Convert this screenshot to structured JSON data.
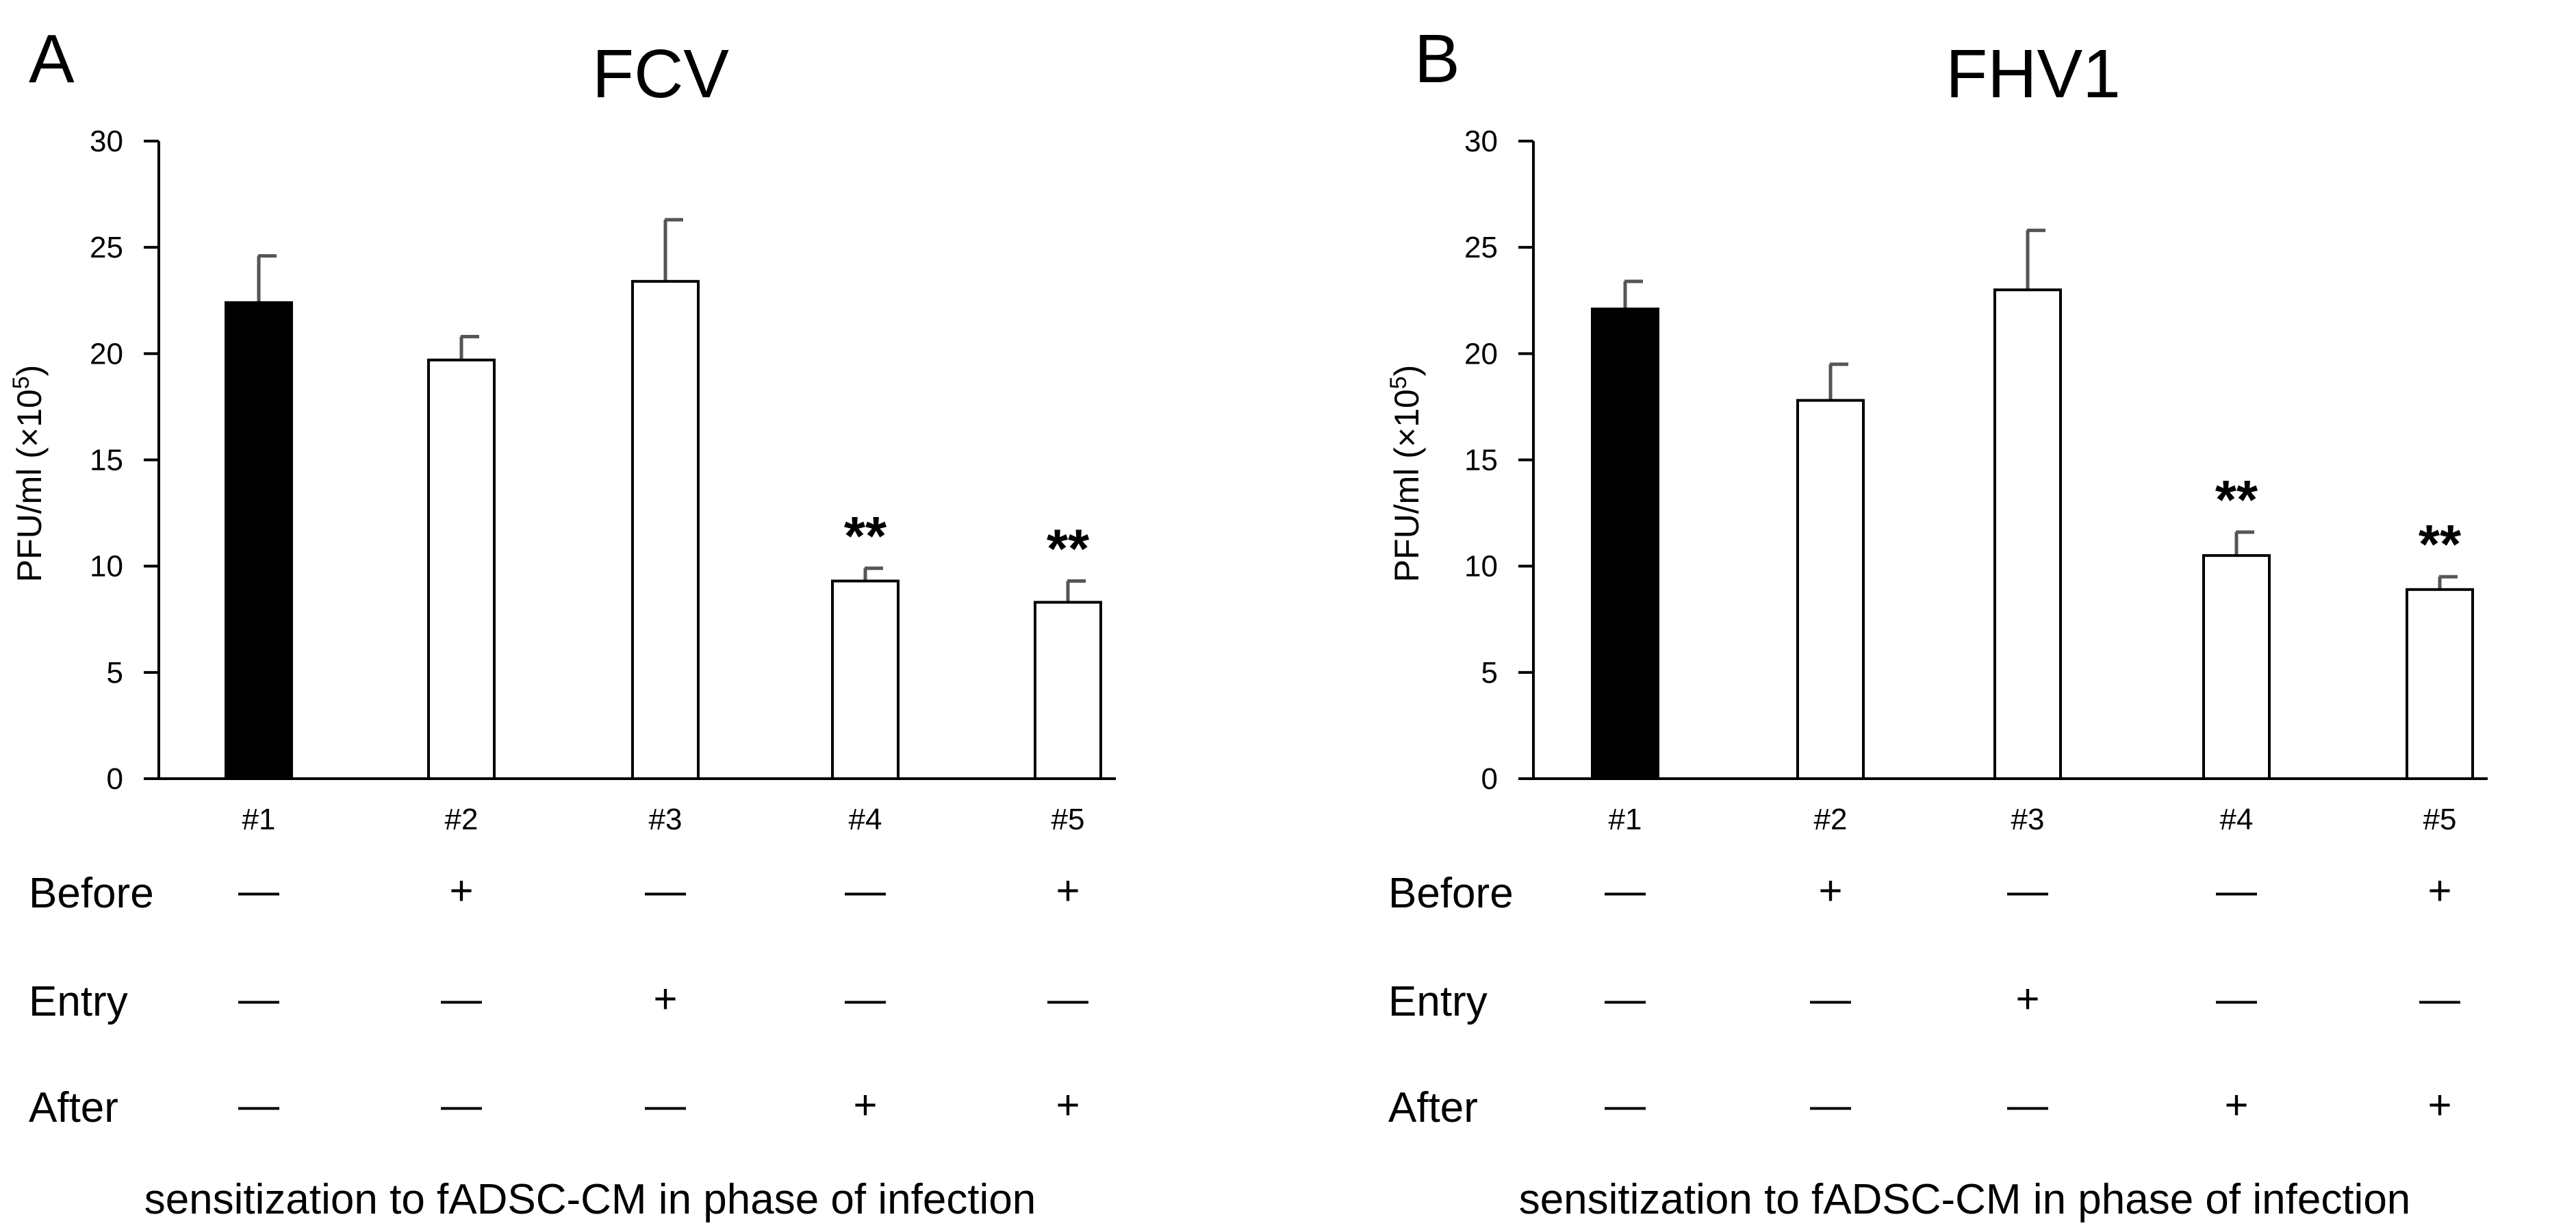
{
  "chart_data": [
    {
      "type": "bar",
      "panel_label": "A",
      "title": "FCV",
      "ylabel_text": "PFU/ml (×10",
      "ylabel_exp": "5",
      "ylabel_close": ")",
      "ylim": [
        0,
        30
      ],
      "yticks": [
        0,
        5,
        10,
        15,
        20,
        25,
        30
      ],
      "categories": [
        "#1",
        "#2",
        "#3",
        "#4",
        "#5"
      ],
      "values": [
        22.4,
        19.7,
        23.4,
        9.3,
        8.3
      ],
      "errors": [
        2.2,
        1.1,
        2.9,
        0.6,
        1.0
      ],
      "fills": [
        "#000000",
        "#ffffff",
        "#ffffff",
        "#ffffff",
        "#ffffff"
      ],
      "significance": [
        "",
        "",
        "",
        "**",
        "**"
      ],
      "conditions": [
        {
          "label": "Before",
          "marks": [
            "—",
            "+",
            "—",
            "—",
            "+"
          ]
        },
        {
          "label": "Entry",
          "marks": [
            "—",
            "—",
            "+",
            "—",
            "—"
          ]
        },
        {
          "label": "After",
          "marks": [
            "—",
            "—",
            "—",
            "+",
            "+"
          ]
        }
      ],
      "xlabel": "sensitization to fADSC-CM in phase of infection"
    },
    {
      "type": "bar",
      "panel_label": "B",
      "title": "FHV1",
      "ylabel_text": "PFU/ml (×10",
      "ylabel_exp": "5",
      "ylabel_close": ")",
      "ylim": [
        0,
        30
      ],
      "yticks": [
        0,
        5,
        10,
        15,
        20,
        25,
        30
      ],
      "categories": [
        "#1",
        "#2",
        "#3",
        "#4",
        "#5"
      ],
      "values": [
        22.1,
        17.8,
        23.0,
        10.5,
        8.9
      ],
      "errors": [
        1.3,
        1.7,
        2.8,
        1.1,
        0.6
      ],
      "fills": [
        "#000000",
        "#ffffff",
        "#ffffff",
        "#ffffff",
        "#ffffff"
      ],
      "significance": [
        "",
        "",
        "",
        "**",
        "**"
      ],
      "conditions": [
        {
          "label": "Before",
          "marks": [
            "—",
            "+",
            "—",
            "—",
            "+"
          ]
        },
        {
          "label": "Entry",
          "marks": [
            "—",
            "—",
            "+",
            "—",
            "—"
          ]
        },
        {
          "label": "After",
          "marks": [
            "—",
            "—",
            "—",
            "+",
            "+"
          ]
        }
      ],
      "xlabel": "sensitization to fADSC-CM in phase of infection"
    }
  ]
}
